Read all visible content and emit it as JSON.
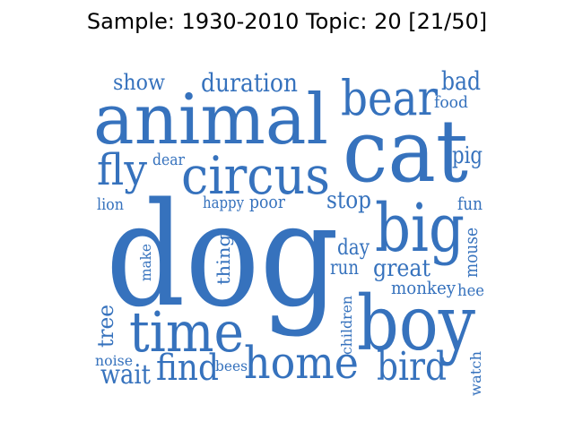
{
  "title": "Sample: 1930-2010 Topic: 20 [21/50]",
  "word_color": "#3672BD",
  "words": [
    "dog",
    "animal",
    "cat",
    "boy",
    "time",
    "big",
    "bear",
    "circus",
    "home",
    "bird",
    "fly",
    "find",
    "duration",
    "show",
    "bad",
    "food",
    "pig",
    "stop",
    "great",
    "wait",
    "tree",
    "day",
    "fun",
    "monkey",
    "run",
    "mouse",
    "dear",
    "happy",
    "poor",
    "lion",
    "thing",
    "make",
    "children",
    "hee",
    "noise",
    "bees",
    "watch"
  ]
}
